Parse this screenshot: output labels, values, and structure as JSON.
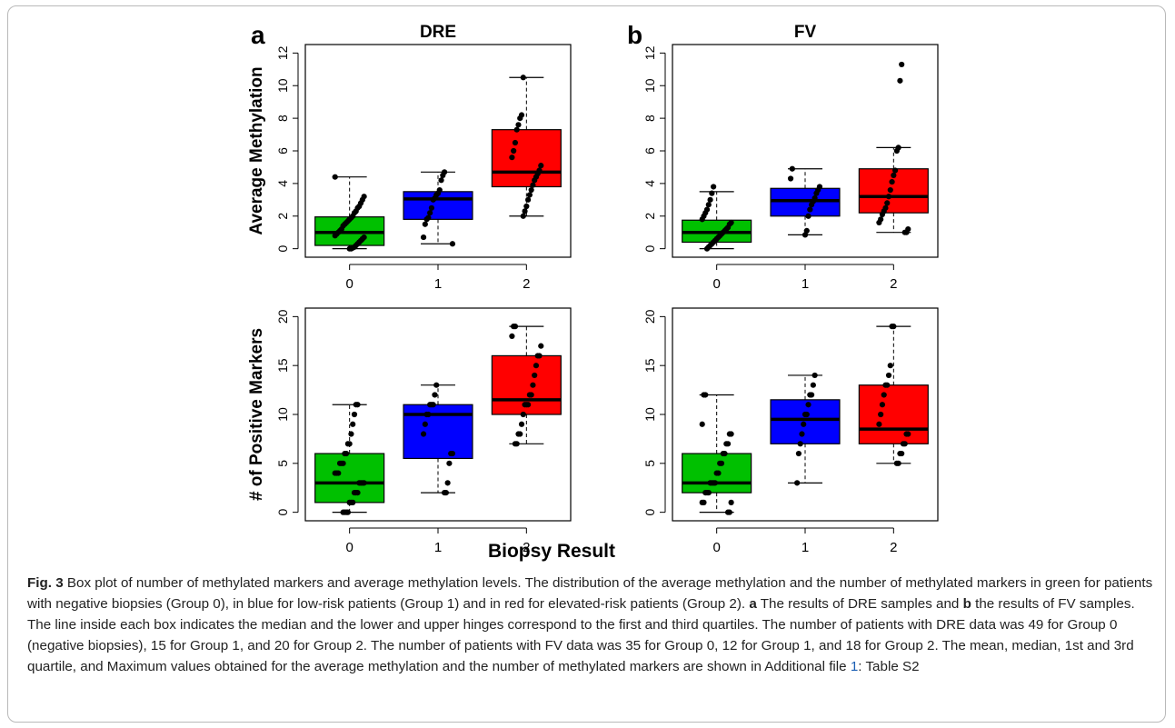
{
  "figure": {
    "panel_a_letter": "a",
    "panel_b_letter": "b",
    "shared_xlabel": "Biopsy Result"
  },
  "caption": {
    "fig_label": "Fig. 3",
    "text_1": " Box plot of number of methylated markers and average methylation levels. The distribution of the average methylation and the number of methylated markers in green for patients with negative biopsies (Group 0), in blue for low-risk patients (Group 1) and in red for elevated-risk patients (Group 2). ",
    "panel_a": "a",
    "text_2": " The results of DRE samples and ",
    "panel_b": "b",
    "text_3": " the results of FV samples. The line inside each box indicates the median and the lower and upper hinges correspond to the first and third quartiles. The number of patients with DRE data was 49 for Group 0 (negative biopsies), 15 for Group 1, and 20 for Group 2. The number of patients with FV data was 35 for Group 0, 12 for Group 1, and 18 for Group 2. The mean, median, 1st and 3rd quartile, and Maximum values obtained for the average methylation and the number of methylated markers are shown in Additional file ",
    "file_link": "1",
    "text_4": ": Table S2"
  },
  "colors": {
    "group0": "#00c000",
    "group1": "#0000ff",
    "group2": "#ff0000"
  },
  "chart_data": [
    {
      "id": "dre_avg",
      "type": "boxplot",
      "title": "DRE",
      "ylabel": "Average Methylation",
      "categories": [
        "0",
        "1",
        "2"
      ],
      "ylim": [
        0,
        12
      ],
      "yticks": [
        0,
        2,
        4,
        6,
        8,
        10,
        12
      ],
      "boxes": [
        {
          "min": 0.0,
          "q1": 0.2,
          "median": 1.0,
          "q3": 1.95,
          "max": 4.4
        },
        {
          "min": 0.3,
          "q1": 1.8,
          "median": 3.05,
          "q3": 3.5,
          "max": 4.7
        },
        {
          "min": 2.0,
          "q1": 3.8,
          "median": 4.7,
          "q3": 7.3,
          "max": 10.5
        }
      ],
      "points": [
        [
          4.4,
          3.2,
          3.0,
          2.8,
          2.6,
          2.5,
          2.3,
          2.2,
          2.0,
          1.9,
          1.8,
          1.7,
          1.6,
          1.5,
          1.4,
          1.2,
          1.1,
          1.0,
          0.9,
          0.8,
          0.7,
          0.6,
          0.5,
          0.4,
          0.3,
          0.2,
          0.1,
          0.05,
          0.0,
          0.0
        ],
        [
          4.7,
          4.5,
          4.2,
          3.6,
          3.4,
          3.3,
          3.1,
          3.0,
          2.5,
          2.2,
          1.9,
          1.8,
          1.5,
          0.7,
          0.3
        ],
        [
          10.5,
          8.2,
          8.0,
          7.6,
          7.3,
          6.5,
          6.0,
          5.6,
          5.1,
          4.8,
          4.6,
          4.4,
          4.2,
          3.9,
          3.6,
          3.3,
          3.0,
          2.6,
          2.3,
          2.0
        ]
      ]
    },
    {
      "id": "fv_avg",
      "type": "boxplot",
      "title": "FV",
      "ylabel": "",
      "categories": [
        "0",
        "1",
        "2"
      ],
      "ylim": [
        0,
        12
      ],
      "yticks": [
        0,
        2,
        4,
        6,
        8,
        10,
        12
      ],
      "boxes": [
        {
          "min": 0.0,
          "q1": 0.4,
          "median": 1.0,
          "q3": 1.75,
          "max": 3.5
        },
        {
          "min": 0.85,
          "q1": 2.0,
          "median": 2.95,
          "q3": 3.7,
          "max": 4.9
        },
        {
          "min": 1.0,
          "q1": 2.2,
          "median": 3.2,
          "q3": 4.9,
          "max": 6.2
        }
      ],
      "points": [
        [
          3.8,
          3.4,
          3.0,
          2.7,
          2.4,
          2.2,
          2.0,
          1.8,
          1.6,
          1.5,
          1.3,
          1.2,
          1.1,
          1.0,
          0.9,
          0.8,
          0.7,
          0.6,
          0.5,
          0.4,
          0.3,
          0.2,
          0.1,
          0.0
        ],
        [
          4.9,
          4.3,
          3.8,
          3.6,
          3.4,
          3.1,
          2.9,
          2.7,
          2.4,
          2.0,
          1.1,
          0.85
        ],
        [
          11.3,
          10.3,
          6.2,
          6.0,
          4.8,
          4.5,
          4.1,
          3.6,
          3.2,
          2.8,
          2.5,
          2.3,
          2.1,
          1.8,
          1.6,
          1.2,
          1.0,
          1.0
        ]
      ]
    },
    {
      "id": "dre_pos",
      "type": "boxplot",
      "title": "",
      "ylabel": "# of Positive Markers",
      "categories": [
        "0",
        "1",
        "2"
      ],
      "ylim": [
        0,
        20
      ],
      "yticks": [
        0,
        5,
        10,
        15,
        20
      ],
      "boxes": [
        {
          "min": 0,
          "q1": 1,
          "median": 3,
          "q3": 6,
          "max": 11
        },
        {
          "min": 2,
          "q1": 5.5,
          "median": 10,
          "q3": 11,
          "max": 13
        },
        {
          "min": 7,
          "q1": 10,
          "median": 11.5,
          "q3": 16,
          "max": 19
        }
      ],
      "points": [
        [
          11,
          11,
          10,
          9,
          8,
          7,
          7,
          6,
          6,
          5,
          5,
          5,
          4,
          4,
          4,
          3,
          3,
          3,
          3,
          2,
          2,
          2,
          1,
          1,
          1,
          0,
          0,
          0,
          0
        ],
        [
          13,
          12,
          11,
          11,
          11,
          10,
          10,
          9,
          8,
          6,
          6,
          5,
          3,
          2,
          2
        ],
        [
          19,
          19,
          18,
          17,
          16,
          16,
          15,
          14,
          13,
          12,
          12,
          11,
          11,
          11,
          10,
          9,
          8,
          8,
          7,
          7
        ]
      ]
    },
    {
      "id": "fv_pos",
      "type": "boxplot",
      "title": "",
      "ylabel": "",
      "categories": [
        "0",
        "1",
        "2"
      ],
      "ylim": [
        0,
        20
      ],
      "yticks": [
        0,
        5,
        10,
        15,
        20
      ],
      "boxes": [
        {
          "min": 0,
          "q1": 2,
          "median": 3,
          "q3": 6,
          "max": 12
        },
        {
          "min": 3,
          "q1": 7,
          "median": 9.5,
          "q3": 11.5,
          "max": 14
        },
        {
          "min": 5,
          "q1": 7,
          "median": 8.5,
          "q3": 13,
          "max": 19
        }
      ],
      "points": [
        [
          12,
          12,
          9,
          8,
          8,
          7,
          7,
          6,
          6,
          5,
          5,
          4,
          4,
          3,
          3,
          3,
          3,
          2,
          2,
          2,
          1,
          1,
          1,
          0,
          0
        ],
        [
          14,
          13,
          12,
          12,
          11,
          10,
          10,
          9,
          8,
          7,
          6,
          3
        ],
        [
          19,
          19,
          15,
          14,
          13,
          13,
          12,
          11,
          10,
          9,
          8,
          8,
          7,
          7,
          6,
          6,
          5,
          5
        ]
      ]
    }
  ]
}
